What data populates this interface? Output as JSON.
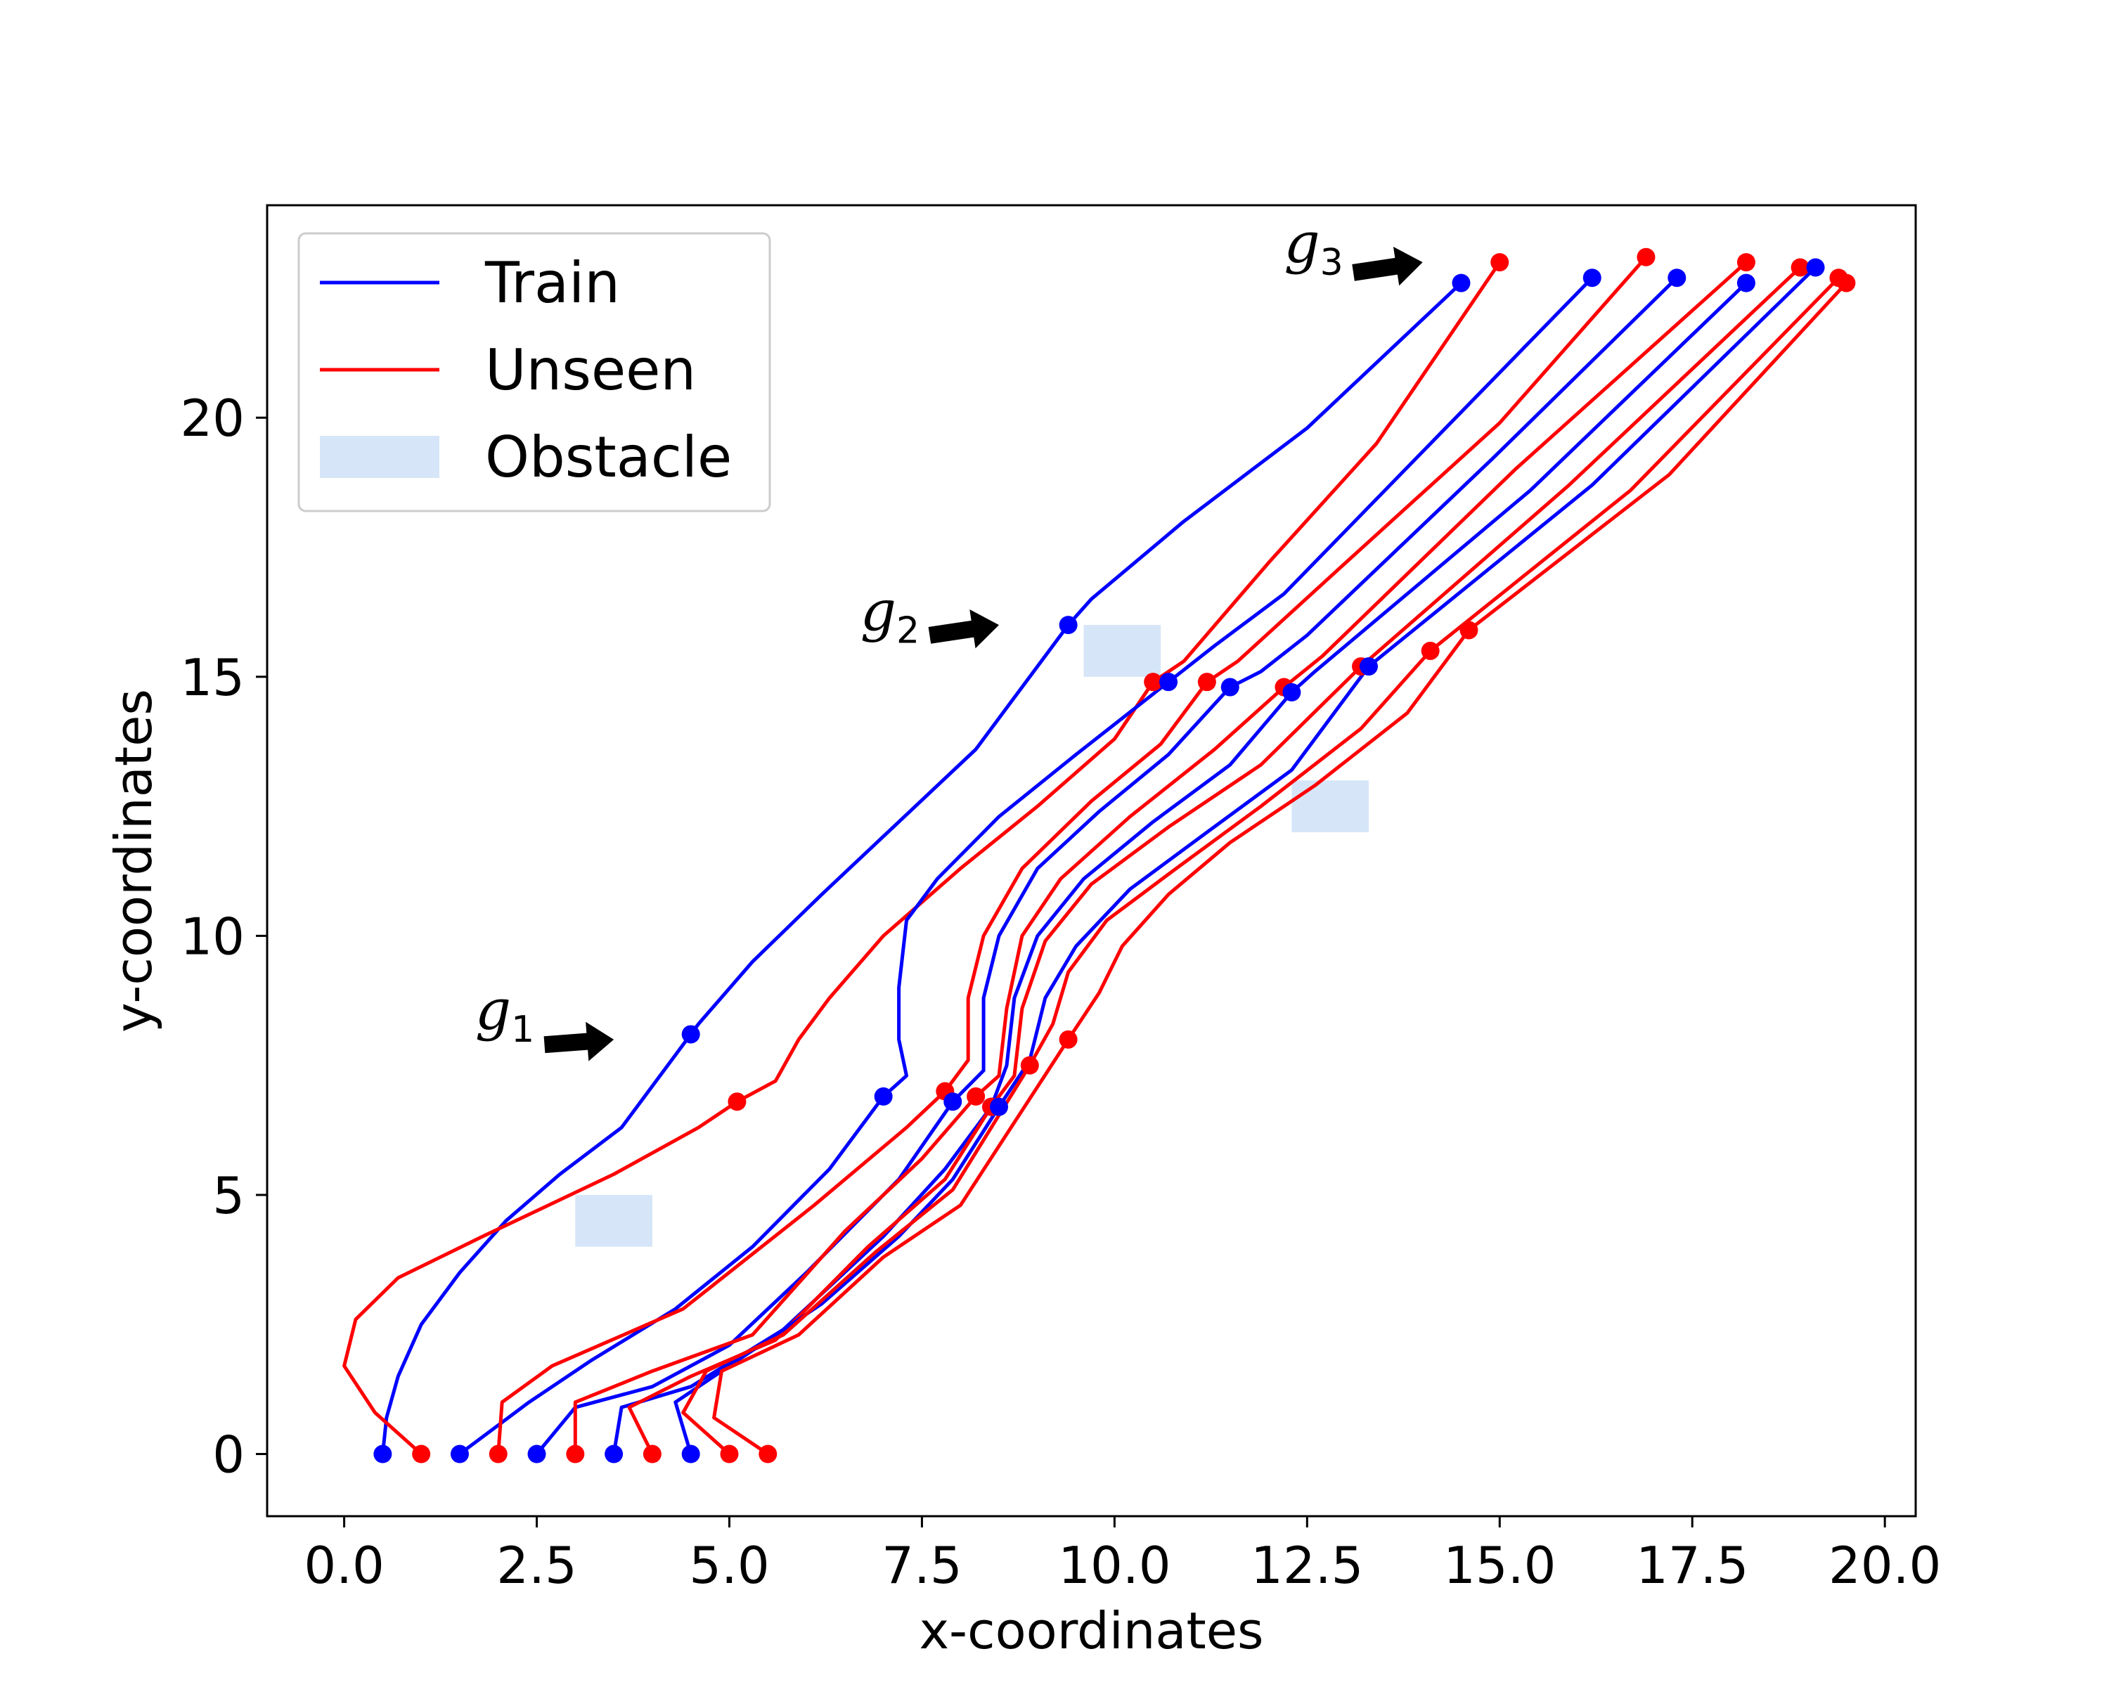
{
  "chart_data": {
    "type": "line",
    "title": "",
    "xlabel": "x-coordinates",
    "ylabel": "y-coordinates",
    "xlim": [
      -1.0,
      20.4
    ],
    "ylim": [
      -1.2,
      24.1
    ],
    "xticks": [
      0.0,
      2.5,
      5.0,
      7.5,
      10.0,
      12.5,
      15.0,
      17.5,
      20.0
    ],
    "xtick_labels": [
      "0.0",
      "2.5",
      "5.0",
      "7.5",
      "10.0",
      "12.5",
      "15.0",
      "17.5",
      "20.0"
    ],
    "yticks": [
      0,
      5,
      10,
      15,
      20
    ],
    "ytick_labels": [
      "0",
      "5",
      "10",
      "15",
      "20"
    ],
    "grid": false,
    "legend": {
      "location": "top-left",
      "entries": [
        {
          "label": "Train",
          "kind": "line",
          "color": "#0000ff"
        },
        {
          "label": "Unseen",
          "kind": "line",
          "color": "#ff0000"
        },
        {
          "label": "Obstacle",
          "kind": "patch",
          "color": "#d6e6f8"
        }
      ]
    },
    "colors": {
      "train": "#0000ff",
      "unseen": "#ff0000",
      "obstacle": "#d6e6f8",
      "arrow": "#000000"
    },
    "obstacles": [
      {
        "x": [
          3.0,
          4.0
        ],
        "y": [
          4.0,
          5.0
        ]
      },
      {
        "x": [
          9.6,
          10.6
        ],
        "y": [
          15.0,
          16.0
        ]
      },
      {
        "x": [
          12.3,
          13.3
        ],
        "y": [
          12.0,
          13.0
        ]
      }
    ],
    "annotations": [
      {
        "base": "g",
        "sub": "1",
        "text_at": [
          1.7,
          8.2
        ],
        "arrow_from": [
          2.6,
          7.9
        ],
        "arrow_to": [
          3.5,
          8.0
        ]
      },
      {
        "base": "g",
        "sub": "2",
        "text_at": [
          6.7,
          15.9
        ],
        "arrow_from": [
          7.6,
          15.8
        ],
        "arrow_to": [
          8.5,
          16.0
        ]
      },
      {
        "base": "g",
        "sub": "3",
        "text_at": [
          12.2,
          23.0
        ],
        "arrow_from": [
          13.1,
          22.8
        ],
        "arrow_to": [
          14.0,
          23.0
        ]
      }
    ],
    "series": [
      {
        "name": "Train",
        "group": "train",
        "points": [
          [
            0.5,
            0
          ],
          [
            0.55,
            0.7
          ],
          [
            0.7,
            1.5
          ],
          [
            1.0,
            2.5
          ],
          [
            1.5,
            3.5
          ],
          [
            2.1,
            4.5
          ],
          [
            2.8,
            5.4
          ],
          [
            3.6,
            6.3
          ],
          [
            4.5,
            8.1
          ],
          [
            4.6,
            8.3
          ],
          [
            5.3,
            9.5
          ],
          [
            6.2,
            10.8
          ],
          [
            7.2,
            12.2
          ],
          [
            8.2,
            13.6
          ],
          [
            9.4,
            16.0
          ],
          [
            9.7,
            16.5
          ],
          [
            10.9,
            18.0
          ],
          [
            12.5,
            19.8
          ],
          [
            14.5,
            22.6
          ]
        ],
        "markers": [
          [
            0.5,
            0
          ],
          [
            4.5,
            8.1
          ],
          [
            9.4,
            16.0
          ],
          [
            14.5,
            22.6
          ]
        ]
      },
      {
        "name": "Unseen",
        "group": "unseen",
        "points": [
          [
            1.0,
            0
          ],
          [
            0.4,
            0.8
          ],
          [
            0.0,
            1.7
          ],
          [
            0.15,
            2.6
          ],
          [
            0.7,
            3.4
          ],
          [
            1.8,
            4.2
          ],
          [
            3.5,
            5.4
          ],
          [
            4.6,
            6.3
          ],
          [
            5.1,
            6.8
          ],
          [
            5.6,
            7.2
          ],
          [
            5.9,
            8.0
          ],
          [
            6.3,
            8.8
          ],
          [
            7.0,
            10.0
          ],
          [
            8.0,
            11.3
          ],
          [
            9.0,
            12.5
          ],
          [
            10.0,
            13.8
          ],
          [
            10.5,
            14.9
          ],
          [
            10.9,
            15.3
          ],
          [
            12.0,
            17.2
          ],
          [
            13.4,
            19.5
          ],
          [
            15.0,
            23.0
          ]
        ],
        "markers": [
          [
            1.0,
            0
          ],
          [
            5.1,
            6.8
          ],
          [
            10.5,
            14.9
          ],
          [
            15.0,
            23.0
          ]
        ]
      },
      {
        "name": "Train",
        "group": "train",
        "points": [
          [
            1.5,
            0
          ],
          [
            2.4,
            1.0
          ],
          [
            3.2,
            1.8
          ],
          [
            4.3,
            2.8
          ],
          [
            5.3,
            4.0
          ],
          [
            6.3,
            5.5
          ],
          [
            7.0,
            6.9
          ],
          [
            7.3,
            7.3
          ],
          [
            7.2,
            8.0
          ],
          [
            7.2,
            9.0
          ],
          [
            7.3,
            10.3
          ],
          [
            7.7,
            11.1
          ],
          [
            8.5,
            12.3
          ],
          [
            9.5,
            13.5
          ],
          [
            10.7,
            14.9
          ],
          [
            11.3,
            15.6
          ],
          [
            12.2,
            16.6
          ],
          [
            16.2,
            22.7
          ]
        ],
        "markers": [
          [
            1.5,
            0
          ],
          [
            7.0,
            6.9
          ],
          [
            10.7,
            14.9
          ],
          [
            16.2,
            22.7
          ]
        ]
      },
      {
        "name": "Unseen",
        "group": "unseen",
        "points": [
          [
            2.0,
            0
          ],
          [
            2.05,
            1.0
          ],
          [
            2.7,
            1.7
          ],
          [
            4.4,
            2.8
          ],
          [
            6.1,
            4.8
          ],
          [
            7.3,
            6.3
          ],
          [
            7.8,
            7.0
          ],
          [
            8.1,
            7.6
          ],
          [
            8.1,
            8.8
          ],
          [
            8.3,
            10.0
          ],
          [
            8.8,
            11.3
          ],
          [
            9.7,
            12.6
          ],
          [
            10.6,
            13.7
          ],
          [
            11.2,
            14.9
          ],
          [
            11.6,
            15.3
          ],
          [
            13.0,
            17.2
          ],
          [
            15.0,
            19.9
          ],
          [
            16.9,
            23.1
          ]
        ],
        "markers": [
          [
            2.0,
            0
          ],
          [
            7.8,
            7.0
          ],
          [
            11.2,
            14.9
          ],
          [
            16.9,
            23.1
          ]
        ]
      },
      {
        "name": "Train",
        "group": "train",
        "points": [
          [
            2.5,
            0
          ],
          [
            3.0,
            0.9
          ],
          [
            4.0,
            1.3
          ],
          [
            5.0,
            2.1
          ],
          [
            6.0,
            3.5
          ],
          [
            7.2,
            5.3
          ],
          [
            7.9,
            6.8
          ],
          [
            8.3,
            7.4
          ],
          [
            8.3,
            8.8
          ],
          [
            8.5,
            10.0
          ],
          [
            9.0,
            11.3
          ],
          [
            9.8,
            12.4
          ],
          [
            10.7,
            13.5
          ],
          [
            11.5,
            14.8
          ],
          [
            11.9,
            15.1
          ],
          [
            12.5,
            15.8
          ],
          [
            14.9,
            19.2
          ],
          [
            17.3,
            22.7
          ]
        ],
        "markers": [
          [
            2.5,
            0
          ],
          [
            7.9,
            6.8
          ],
          [
            11.5,
            14.8
          ],
          [
            17.3,
            22.7
          ]
        ]
      },
      {
        "name": "Unseen",
        "group": "unseen",
        "points": [
          [
            3.0,
            0
          ],
          [
            3.0,
            1.0
          ],
          [
            4.0,
            1.6
          ],
          [
            5.3,
            2.3
          ],
          [
            6.5,
            4.3
          ],
          [
            7.5,
            5.7
          ],
          [
            8.2,
            6.9
          ],
          [
            8.5,
            7.3
          ],
          [
            8.6,
            8.6
          ],
          [
            8.8,
            10.0
          ],
          [
            9.3,
            11.1
          ],
          [
            10.2,
            12.3
          ],
          [
            11.3,
            13.6
          ],
          [
            12.2,
            14.8
          ],
          [
            12.7,
            15.4
          ],
          [
            15.2,
            19.0
          ],
          [
            18.2,
            23.0
          ]
        ],
        "markers": [
          [
            3.0,
            0
          ],
          [
            8.2,
            6.9
          ],
          [
            12.2,
            14.8
          ],
          [
            18.2,
            23.0
          ]
        ]
      },
      {
        "name": "Train",
        "group": "train",
        "points": [
          [
            3.5,
            0
          ],
          [
            3.6,
            0.9
          ],
          [
            4.5,
            1.3
          ],
          [
            5.7,
            2.4
          ],
          [
            7.0,
            4.2
          ],
          [
            7.8,
            5.5
          ],
          [
            8.4,
            6.7
          ],
          [
            8.6,
            7.5
          ],
          [
            8.7,
            8.8
          ],
          [
            9.0,
            10.0
          ],
          [
            9.6,
            11.1
          ],
          [
            10.5,
            12.2
          ],
          [
            11.5,
            13.3
          ],
          [
            12.3,
            14.7
          ],
          [
            12.6,
            15.1
          ],
          [
            15.4,
            18.6
          ],
          [
            18.2,
            22.6
          ]
        ],
        "markers": [
          [
            3.5,
            0
          ],
          [
            8.4,
            6.7
          ],
          [
            12.3,
            14.7
          ],
          [
            18.2,
            22.6
          ]
        ]
      },
      {
        "name": "Unseen",
        "group": "unseen",
        "points": [
          [
            4.0,
            0
          ],
          [
            3.7,
            0.9
          ],
          [
            4.5,
            1.5
          ],
          [
            5.6,
            2.2
          ],
          [
            6.8,
            4.0
          ],
          [
            7.8,
            5.3
          ],
          [
            8.4,
            6.7
          ],
          [
            8.7,
            7.3
          ],
          [
            8.8,
            8.6
          ],
          [
            9.1,
            9.9
          ],
          [
            9.7,
            11.0
          ],
          [
            10.7,
            12.1
          ],
          [
            11.9,
            13.3
          ],
          [
            13.2,
            15.2
          ],
          [
            15.9,
            18.7
          ],
          [
            18.9,
            22.9
          ]
        ],
        "markers": [
          [
            4.0,
            0
          ],
          [
            8.4,
            6.7
          ],
          [
            13.2,
            15.2
          ],
          [
            18.9,
            22.9
          ]
        ]
      },
      {
        "name": "Train",
        "group": "train",
        "points": [
          [
            4.5,
            0
          ],
          [
            4.3,
            1.0
          ],
          [
            5.1,
            1.8
          ],
          [
            6.2,
            2.9
          ],
          [
            7.2,
            4.2
          ],
          [
            7.9,
            5.3
          ],
          [
            8.5,
            6.7
          ],
          [
            8.9,
            7.6
          ],
          [
            9.1,
            8.8
          ],
          [
            9.5,
            9.8
          ],
          [
            10.2,
            10.9
          ],
          [
            11.2,
            12.0
          ],
          [
            12.3,
            13.2
          ],
          [
            13.3,
            15.2
          ],
          [
            16.2,
            18.7
          ],
          [
            19.1,
            22.9
          ]
        ],
        "markers": [
          [
            4.5,
            0
          ],
          [
            8.5,
            6.7
          ],
          [
            13.3,
            15.2
          ],
          [
            19.1,
            22.9
          ]
        ]
      },
      {
        "name": "Unseen",
        "group": "unseen",
        "points": [
          [
            5.0,
            0
          ],
          [
            4.4,
            0.8
          ],
          [
            4.7,
            1.6
          ],
          [
            5.7,
            2.3
          ],
          [
            6.9,
            3.9
          ],
          [
            7.9,
            5.1
          ],
          [
            8.9,
            7.5
          ],
          [
            9.2,
            8.3
          ],
          [
            9.4,
            9.3
          ],
          [
            9.9,
            10.3
          ],
          [
            10.8,
            11.3
          ],
          [
            11.9,
            12.5
          ],
          [
            13.2,
            14.0
          ],
          [
            14.1,
            15.5
          ],
          [
            16.7,
            18.6
          ],
          [
            19.4,
            22.7
          ]
        ],
        "markers": [
          [
            5.0,
            0
          ],
          [
            8.9,
            7.5
          ],
          [
            14.1,
            15.5
          ],
          [
            19.4,
            22.7
          ]
        ]
      },
      {
        "name": "Unseen",
        "group": "unseen",
        "points": [
          [
            5.5,
            0
          ],
          [
            4.8,
            0.7
          ],
          [
            4.9,
            1.6
          ],
          [
            5.9,
            2.3
          ],
          [
            7.0,
            3.8
          ],
          [
            8.0,
            4.8
          ],
          [
            9.4,
            8.0
          ],
          [
            9.8,
            8.9
          ],
          [
            10.1,
            9.8
          ],
          [
            10.7,
            10.8
          ],
          [
            11.5,
            11.8
          ],
          [
            12.6,
            12.9
          ],
          [
            13.8,
            14.3
          ],
          [
            14.6,
            15.9
          ],
          [
            17.2,
            18.9
          ],
          [
            19.5,
            22.6
          ]
        ],
        "markers": [
          [
            5.5,
            0
          ],
          [
            9.4,
            8.0
          ],
          [
            14.6,
            15.9
          ],
          [
            19.5,
            22.6
          ]
        ]
      }
    ]
  }
}
